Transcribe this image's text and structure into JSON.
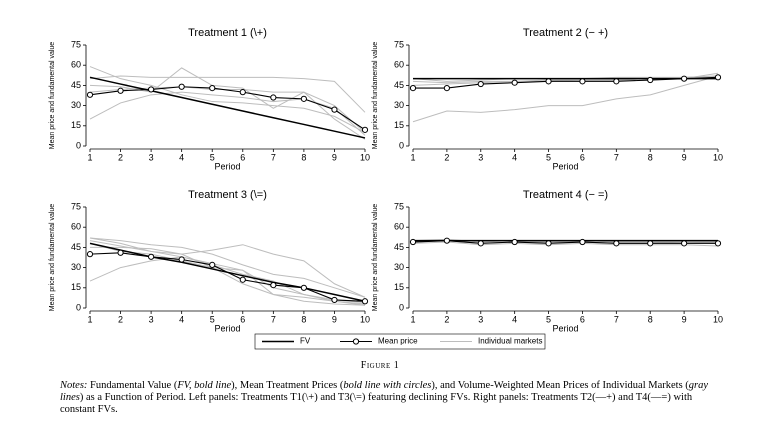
{
  "chart_data": [
    {
      "type": "line",
      "title": "Treatment 1 (\\+)",
      "xlabel": "Period",
      "ylabel": "Mean price and fundamental value",
      "x": [
        1,
        2,
        3,
        4,
        5,
        6,
        7,
        8,
        9,
        10
      ],
      "xlim": [
        1,
        10
      ],
      "xticks": [
        1,
        2,
        3,
        4,
        5,
        6,
        7,
        8,
        9,
        10
      ],
      "ylim": [
        0,
        75
      ],
      "yticks": [
        0,
        15,
        30,
        45,
        60,
        75
      ],
      "series": [
        {
          "name": "FV",
          "color": "#000000",
          "values": [
            51,
            46,
            41,
            36,
            31,
            26,
            21,
            16,
            11,
            6
          ]
        },
        {
          "name": "Mean price",
          "color": "#000000",
          "marker": "circle",
          "values": [
            38,
            41,
            42,
            44,
            43,
            40,
            36,
            35,
            27,
            12
          ]
        },
        {
          "name": "Individual markets",
          "color": "#bdbdbd",
          "lines": [
            [
              59,
              50,
              45,
              38,
              33,
              32,
              30,
              28,
              22,
              10
            ],
            [
              50,
              52,
              51,
              51,
              51,
              51,
              51,
              50,
              48,
              25
            ],
            [
              20,
              32,
              38,
              40,
              38,
              36,
              33,
              35,
              28,
              8
            ],
            [
              45,
              44,
              40,
              58,
              45,
              43,
              28,
              40,
              20,
              5
            ],
            [
              40,
              42,
              43,
              44,
              42,
              42,
              40,
              40,
              30,
              10
            ]
          ]
        }
      ]
    },
    {
      "type": "line",
      "title": "Treatment 2 (− +)",
      "xlabel": "Period",
      "ylabel": "Mean price and fundamental value",
      "x": [
        1,
        2,
        3,
        4,
        5,
        6,
        7,
        8,
        9,
        10
      ],
      "xlim": [
        1,
        10
      ],
      "xticks": [
        1,
        2,
        3,
        4,
        5,
        6,
        7,
        8,
        9,
        10
      ],
      "ylim": [
        0,
        75
      ],
      "yticks": [
        0,
        15,
        30,
        45,
        60,
        75
      ],
      "series": [
        {
          "name": "FV",
          "color": "#000000",
          "values": [
            50,
            50,
            50,
            50,
            50,
            50,
            50,
            50,
            50,
            50
          ]
        },
        {
          "name": "Mean price",
          "color": "#000000",
          "marker": "circle",
          "values": [
            43,
            43,
            46,
            47,
            48,
            48,
            48,
            49,
            50,
            51
          ]
        },
        {
          "name": "Individual markets",
          "color": "#bdbdbd",
          "lines": [
            [
              18,
              26,
              25,
              27,
              30,
              30,
              35,
              38,
              45,
              52
            ],
            [
              50,
              48,
              49,
              50,
              50,
              50,
              51,
              51,
              51,
              52
            ],
            [
              48,
              47,
              48,
              48,
              49,
              49,
              49,
              50,
              50,
              54
            ],
            [
              45,
              46,
              47,
              48,
              48,
              49,
              49,
              50,
              51,
              52
            ]
          ]
        }
      ]
    },
    {
      "type": "line",
      "title": "Treatment 3 (\\=)",
      "xlabel": "Period",
      "ylabel": "Mean price and fundamental value",
      "x": [
        1,
        2,
        3,
        4,
        5,
        6,
        7,
        8,
        9,
        10
      ],
      "xlim": [
        1,
        10
      ],
      "xticks": [
        1,
        2,
        3,
        4,
        5,
        6,
        7,
        8,
        9,
        10
      ],
      "ylim": [
        0,
        75
      ],
      "yticks": [
        0,
        15,
        30,
        45,
        60,
        75
      ],
      "series": [
        {
          "name": "FV",
          "color": "#000000",
          "values": [
            48,
            43,
            38,
            34,
            29,
            24,
            19,
            15,
            10,
            5
          ]
        },
        {
          "name": "Mean price",
          "color": "#000000",
          "marker": "circle",
          "values": [
            40,
            41,
            38,
            36,
            32,
            21,
            17,
            15,
            6,
            5
          ]
        },
        {
          "name": "Individual markets",
          "color": "#bdbdbd",
          "lines": [
            [
              52,
              50,
              47,
              45,
              40,
              32,
              25,
              22,
              15,
              8
            ],
            [
              45,
              45,
              44,
              40,
              30,
              18,
              10,
              8,
              5,
              3
            ],
            [
              20,
              30,
              35,
              38,
              32,
              25,
              20,
              10,
              5,
              2
            ],
            [
              52,
              48,
              42,
              40,
              43,
              47,
              40,
              35,
              18,
              8
            ],
            [
              48,
              42,
              40,
              35,
              30,
              28,
              15,
              10,
              6,
              4
            ],
            [
              50,
              46,
              42,
              38,
              33,
              28,
              10,
              5,
              3,
              2
            ]
          ]
        }
      ]
    },
    {
      "type": "line",
      "title": "Treatment 4 (− =)",
      "xlabel": "Period",
      "ylabel": "Mean price and fundamental value",
      "x": [
        1,
        2,
        3,
        4,
        5,
        6,
        7,
        8,
        9,
        10
      ],
      "xlim": [
        1,
        10
      ],
      "xticks": [
        1,
        2,
        3,
        4,
        5,
        6,
        7,
        8,
        9,
        10
      ],
      "ylim": [
        0,
        75
      ],
      "yticks": [
        0,
        15,
        30,
        45,
        60,
        75
      ],
      "series": [
        {
          "name": "FV",
          "color": "#000000",
          "values": [
            50,
            50,
            50,
            50,
            50,
            50,
            50,
            50,
            50,
            50
          ]
        },
        {
          "name": "Mean price",
          "color": "#000000",
          "marker": "circle",
          "values": [
            49,
            50,
            48,
            49,
            48,
            49,
            48,
            48,
            48,
            48
          ]
        },
        {
          "name": "Individual markets",
          "color": "#bdbdbd",
          "lines": [
            [
              50,
              51,
              49,
              50,
              49,
              50,
              49,
              49,
              49,
              49
            ],
            [
              48,
              49,
              47,
              48,
              47,
              48,
              47,
              47,
              47,
              46
            ],
            [
              49,
              50,
              48,
              49,
              49,
              49,
              48,
              48,
              49,
              48
            ]
          ]
        }
      ]
    }
  ],
  "figure_label": "Figure 1",
  "notes": [
    {
      "text": "Notes:",
      "italic": true
    },
    {
      "text": " Fundamental Value (",
      "italic": false
    },
    {
      "text": "FV, bold line",
      "italic": true
    },
    {
      "text": "), Mean Treatment Prices (",
      "italic": false
    },
    {
      "text": "bold line with circles",
      "italic": true
    },
    {
      "text": "), and Volume-Weighted Mean Prices of Individual Markets (",
      "italic": false
    },
    {
      "text": "gray lines",
      "italic": true
    },
    {
      "text": ") as a Function of Period. Left panels: Treatments T1(\\+) and T3(\\=) featuring declining FVs. Right panels: Treatments T2(—+) and T4(—=) with constant FVs.",
      "italic": false
    }
  ]
}
